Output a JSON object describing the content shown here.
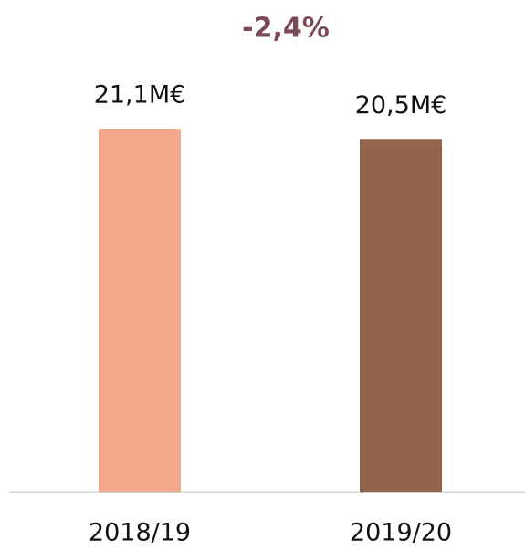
{
  "chart_data": {
    "type": "bar",
    "annotation": "-2,4%",
    "categories": [
      "2018/19",
      "2019/20"
    ],
    "values": [
      21.1,
      20.5
    ],
    "value_labels": [
      "21,1M€",
      "20,5M€"
    ],
    "colors": [
      "#f2a98a",
      "#93654a"
    ]
  }
}
